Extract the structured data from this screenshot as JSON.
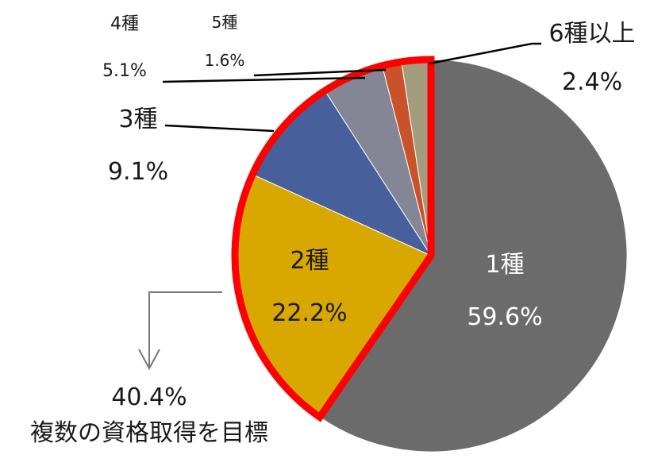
{
  "chart_data": {
    "type": "pie",
    "categories": [
      "1種",
      "2種",
      "3種",
      "4種",
      "5種",
      "6種以上"
    ],
    "values": [
      59.6,
      22.2,
      9.1,
      5.1,
      1.6,
      2.4
    ],
    "value_labels": [
      "59.6%",
      "22.2%",
      "9.1%",
      "5.1%",
      "1.6%",
      "2.4%"
    ],
    "colors": [
      "#6b6b6b",
      "#d9a800",
      "#47609b",
      "#858695",
      "#c9522a",
      "#a39d7e"
    ],
    "direction": "clockwise",
    "start_angle": "top",
    "highlight": {
      "segments": [
        "2種",
        "3種",
        "4種",
        "5種",
        "6種以上"
      ],
      "outline_color": "#ff0000",
      "value": "40.4%",
      "caption": "複数の資格取得を目標"
    }
  }
}
